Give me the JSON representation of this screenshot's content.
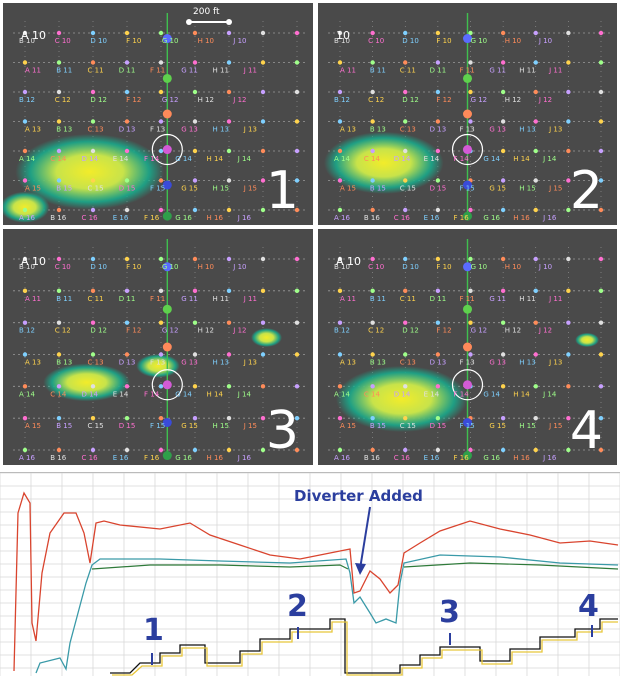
{
  "scale_bar": {
    "label": "200 ft"
  },
  "panels": [
    {
      "corner_label": "A 10",
      "number": "1"
    },
    {
      "corner_label": "10",
      "number": "2"
    },
    {
      "corner_label": "A 10",
      "number": "3"
    },
    {
      "corner_label": "A 10",
      "number": "4"
    }
  ],
  "well_labels": {
    "row10": [
      "B 10",
      "C 10",
      "D 10",
      "F 10",
      "G 10",
      "H 10",
      "J 10"
    ],
    "row11": [
      "A 11",
      "B 11",
      "C 11",
      "D 11",
      "F 11",
      "G 11",
      "H 11",
      "J 11"
    ],
    "row12": [
      "B 12",
      "C 12",
      "D 12",
      "F 12",
      "G 12",
      "H 12",
      "J 12"
    ],
    "row13": [
      "A 13",
      "B 13",
      "C 13",
      "D 13",
      "F 13",
      "G 13",
      "H 13",
      "J 13"
    ],
    "row14": [
      "A 14",
      "C 14",
      "D 14",
      "E 14",
      "F 14",
      "G 14",
      "H 14",
      "J 14"
    ],
    "row15": [
      "A 15",
      "B 15",
      "C 15",
      "D 15",
      "F 15",
      "G 15",
      "H 15",
      "J 15"
    ],
    "row16": [
      "A 16",
      "B 16",
      "C 16",
      "E 16",
      "F 16",
      "G 16",
      "H 16",
      "J 16"
    ]
  },
  "chart_annotations": {
    "diverter": "Diverter Added",
    "markers": [
      "1",
      "2",
      "3",
      "4"
    ]
  },
  "colors": {
    "panel_bg": "#4a4a4a",
    "grid_line": "#9a9a9a",
    "plume_edge": "#1aa88a",
    "plume_core": "#f2ec2a",
    "annotation": "#2b3e9e",
    "red_curve": "#d9442e",
    "teal_curve": "#3a9aa8",
    "green_curve": "#2f7a3a",
    "black_curve": "#111111",
    "yellow_curve": "#e8c63a"
  }
}
